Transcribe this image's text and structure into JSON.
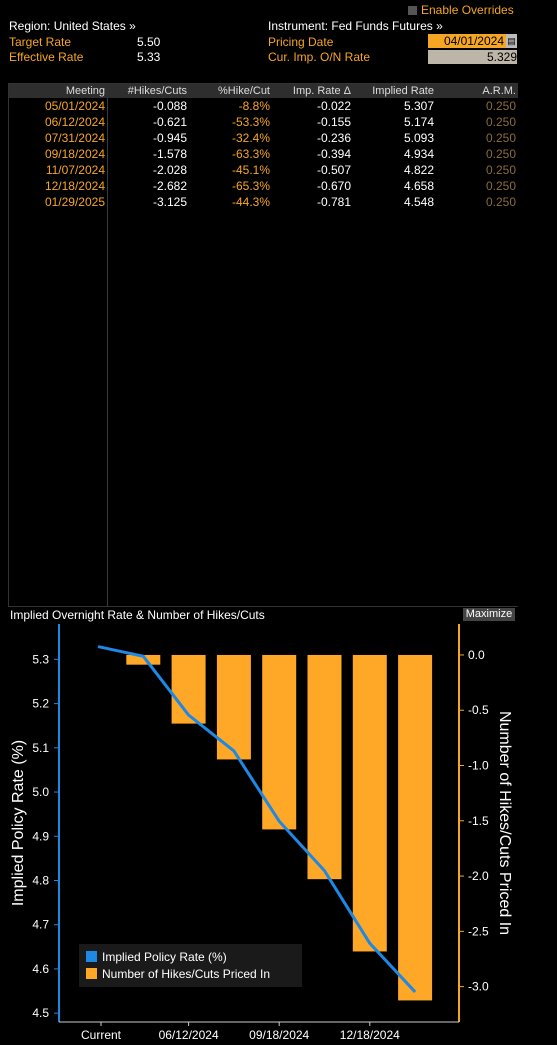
{
  "header": {
    "region_label": "Region: United States »",
    "instrument_label": "Instrument: Fed Funds Futures »",
    "enable_overrides": "Enable Overrides",
    "target_rate_label": "Target Rate",
    "target_rate_value": "5.50",
    "effective_rate_label": "Effective Rate",
    "effective_rate_value": "5.33",
    "pricing_date_label": "Pricing Date",
    "pricing_date_value": "04/01/2024",
    "cur_imp_label": "Cur. Imp. O/N Rate",
    "cur_imp_value": "5.329"
  },
  "table": {
    "columns": [
      "Meeting",
      "#Hikes/Cuts",
      "%Hike/Cut",
      "Imp. Rate Δ",
      "Implied Rate",
      "A.R.M."
    ],
    "rows": [
      {
        "meeting": "05/01/2024",
        "hikes": "-0.088",
        "pct": "-8.8%",
        "delta": "-0.022",
        "implied": "5.307",
        "arm": "0.250"
      },
      {
        "meeting": "06/12/2024",
        "hikes": "-0.621",
        "pct": "-53.3%",
        "delta": "-0.155",
        "implied": "5.174",
        "arm": "0.250"
      },
      {
        "meeting": "07/31/2024",
        "hikes": "-0.945",
        "pct": "-32.4%",
        "delta": "-0.236",
        "implied": "5.093",
        "arm": "0.250"
      },
      {
        "meeting": "09/18/2024",
        "hikes": "-1.578",
        "pct": "-63.3%",
        "delta": "-0.394",
        "implied": "4.934",
        "arm": "0.250"
      },
      {
        "meeting": "11/07/2024",
        "hikes": "-2.028",
        "pct": "-45.1%",
        "delta": "-0.507",
        "implied": "4.822",
        "arm": "0.250"
      },
      {
        "meeting": "12/18/2024",
        "hikes": "-2.682",
        "pct": "-65.3%",
        "delta": "-0.670",
        "implied": "4.658",
        "arm": "0.250"
      },
      {
        "meeting": "01/29/2025",
        "hikes": "-3.125",
        "pct": "-44.3%",
        "delta": "-0.781",
        "implied": "4.548",
        "arm": "0.250"
      }
    ]
  },
  "chart_panel": {
    "title": "Implied Overnight Rate & Number of Hikes/Cuts",
    "maximize": "Maximize"
  },
  "colors": {
    "accent_orange": "#f5a623",
    "line_blue": "#1e88e5",
    "bar_orange": "#ffa726"
  },
  "chart_data": {
    "type": "bar",
    "categories": [
      "Current",
      "05/01/2024",
      "06/12/2024",
      "07/31/2024",
      "09/18/2024",
      "11/07/2024",
      "12/18/2024",
      "01/29/2025"
    ],
    "x_tick_labels": [
      "Current",
      "06/12/2024",
      "09/18/2024",
      "12/18/2024"
    ],
    "series": [
      {
        "name": "Implied Policy Rate (%)",
        "type": "line",
        "axis": "left",
        "values": [
          5.329,
          5.307,
          5.174,
          5.093,
          4.934,
          4.822,
          4.658,
          4.548
        ]
      },
      {
        "name": "Number of Hikes/Cuts Priced In",
        "type": "bar",
        "axis": "right",
        "values": [
          null,
          -0.088,
          -0.621,
          -0.945,
          -1.578,
          -2.028,
          -2.682,
          -3.125
        ]
      }
    ],
    "ylabel": "Implied Policy Rate (%)",
    "y2label": "Number of Hikes/Cuts Priced In",
    "ylim": [
      4.48,
      5.38
    ],
    "y_ticks": [
      4.5,
      4.6,
      4.7,
      4.8,
      4.9,
      5.0,
      5.1,
      5.2,
      5.3
    ],
    "y2lim": [
      -3.32,
      0.28
    ],
    "y2_ticks": [
      0.0,
      -0.5,
      -1.0,
      -1.5,
      -2.0,
      -2.5,
      -3.0
    ],
    "legend_position": "bottom-left",
    "grid": false
  }
}
